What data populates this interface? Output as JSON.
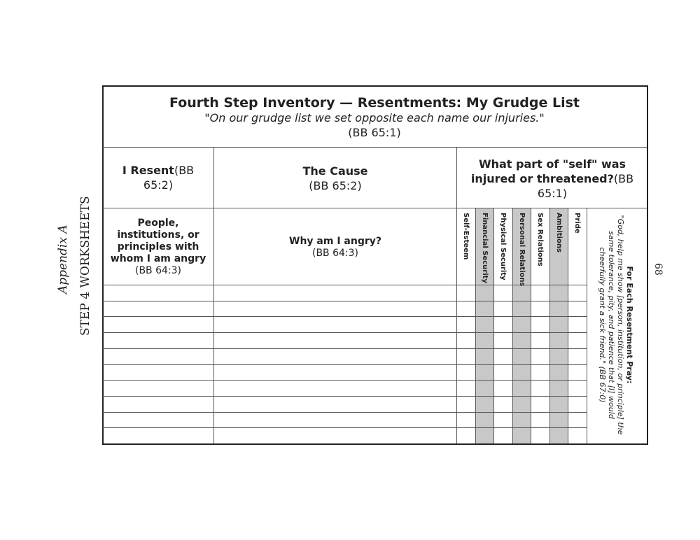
{
  "side": {
    "appendix": "Appendix A",
    "section": "STEP 4 WORKSHEETS",
    "page_number": "68"
  },
  "header": {
    "title": "Fourth Step Inventory — Resentments:  My Grudge List",
    "quote": "\"On our grudge list we set opposite each name our injuries.\"",
    "ref": "(BB 65:1)"
  },
  "columns": {
    "resent": {
      "bold": "I Resent",
      "ref": "(BB 65:2)",
      "sub_bold": "People, institutions, or principles with whom I am angry",
      "sub_ref": "(BB 64:3)"
    },
    "cause": {
      "bold": "The Cause",
      "ref": "(BB 65:2)",
      "sub_bold": "Why am I angry?",
      "sub_ref": "(BB 64:3)"
    },
    "self": {
      "bold": "What part of \"self\" was injured or threatened?",
      "ref": "(BB 65:1)"
    }
  },
  "self_columns": [
    {
      "label": "Self-Esteem",
      "shaded": false
    },
    {
      "label": "Financial Security",
      "shaded": true
    },
    {
      "label": "Physical Security",
      "shaded": false
    },
    {
      "label": "Personal Relations",
      "shaded": true
    },
    {
      "label": "Sex Relations",
      "shaded": false
    },
    {
      "label": "Ambitions",
      "shaded": true
    },
    {
      "label": "Pride",
      "shaded": false
    }
  ],
  "prayer": {
    "heading": "For Each Resentment Pray:",
    "text": "\"God, help me show [person, institution, or principle] the same tolerance, pity, and patience that [I] would cheerfully grant a sick friend.\" (BB 67:0)"
  },
  "blank_rows": 10,
  "colors": {
    "shade": "#c8c8c8",
    "border": "#222222"
  }
}
